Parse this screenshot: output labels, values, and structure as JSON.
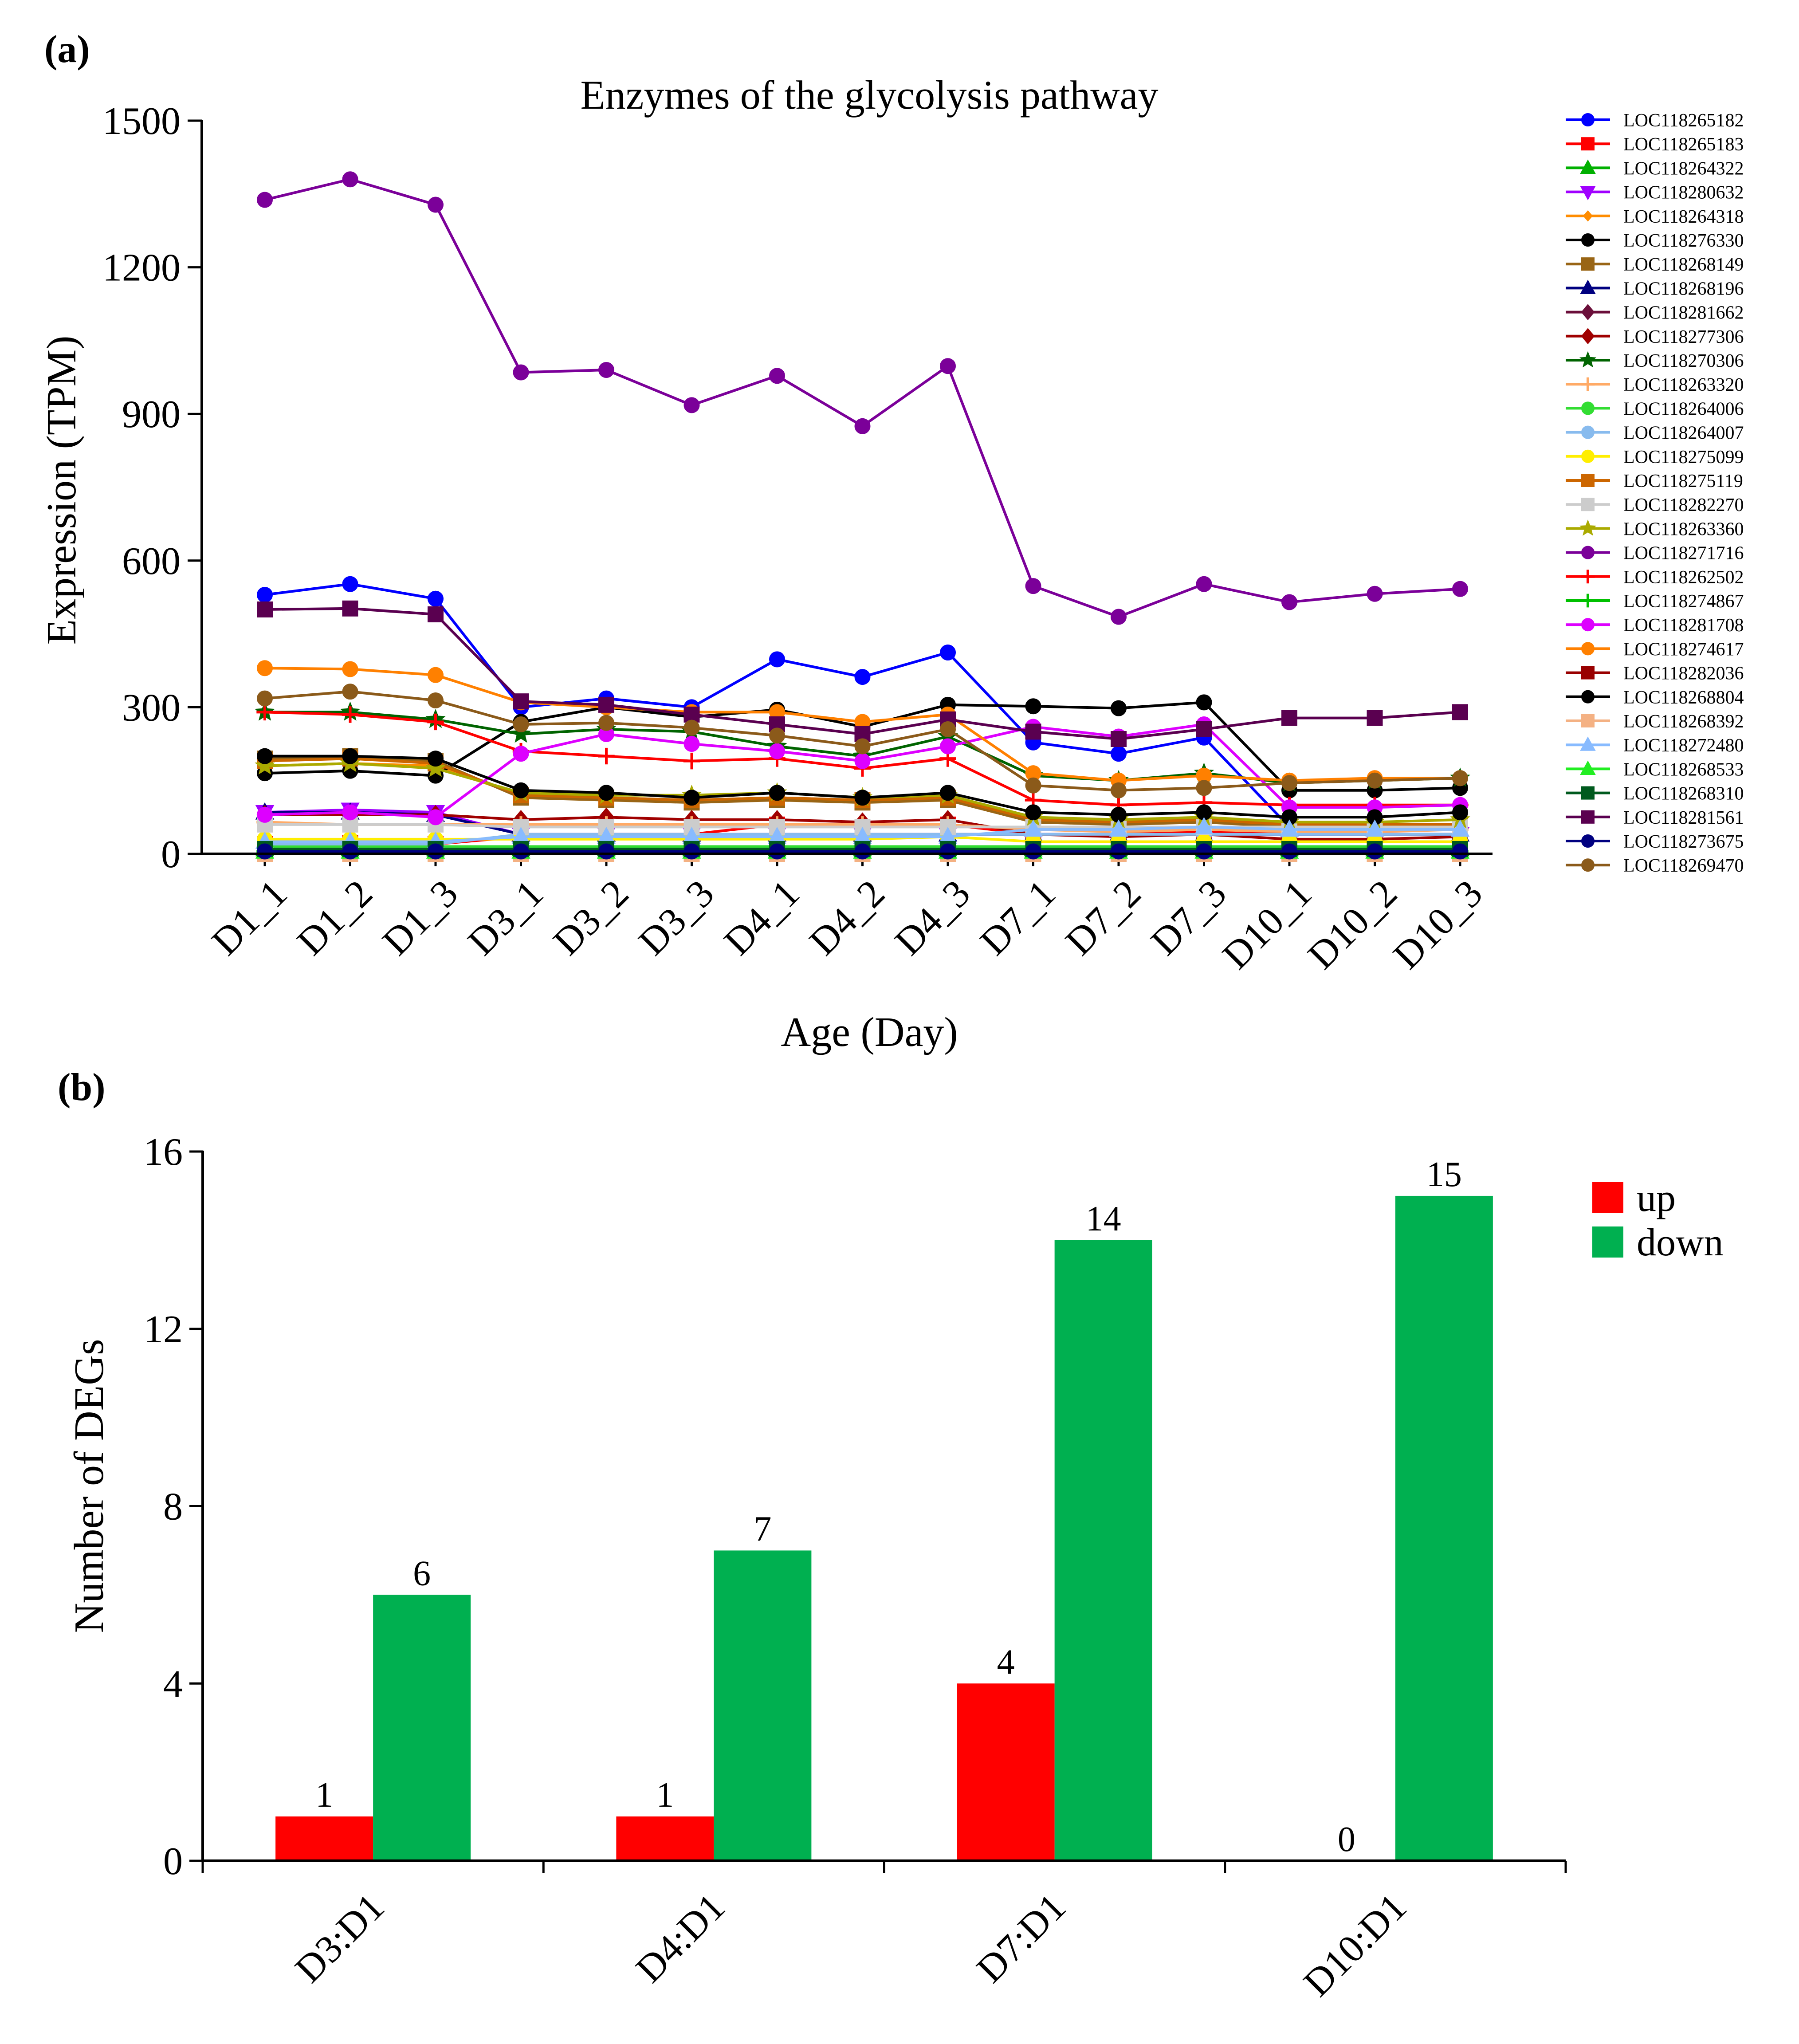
{
  "figure": {
    "panel_a_label": "(a)",
    "panel_b_label": "(b)"
  },
  "chart_data": [
    {
      "type": "line",
      "title": "Enzymes of the glycolysis pathway",
      "xlabel": "Age (Day)",
      "ylabel": "Expression (TPM)",
      "ylim": [
        0,
        1500
      ],
      "yticks": [
        "0",
        "300",
        "600",
        "900",
        "1200",
        "1500"
      ],
      "categories": [
        "D1_1",
        "D1_2",
        "D1_3",
        "D3_1",
        "D3_2",
        "D3_3",
        "D4_1",
        "D4_2",
        "D4_3",
        "D7_1",
        "D7_2",
        "D7_3",
        "D10_1",
        "D10_2",
        "D10_3"
      ],
      "legend_position": "right",
      "series": [
        {
          "name": "LOC118265182",
          "color": "#0000FF",
          "marker": "circle",
          "values": [
            530,
            552,
            522,
            300,
            318,
            300,
            398,
            362,
            412,
            228,
            205,
            238,
            55,
            55,
            55
          ]
        },
        {
          "name": "LOC118265183",
          "color": "#FF0000",
          "marker": "square",
          "values": [
            20,
            22,
            20,
            35,
            40,
            40,
            60,
            55,
            60,
            40,
            40,
            45,
            40,
            40,
            40
          ]
        },
        {
          "name": "LOC118264322",
          "color": "#00B000",
          "marker": "triangle",
          "values": [
            10,
            10,
            10,
            10,
            10,
            10,
            10,
            10,
            10,
            10,
            10,
            10,
            10,
            10,
            10
          ]
        },
        {
          "name": "LOC118280632",
          "color": "#A000FF",
          "marker": "triangle-down",
          "values": [
            85,
            90,
            85,
            40,
            40,
            40,
            40,
            40,
            40,
            40,
            40,
            40,
            40,
            40,
            40
          ]
        },
        {
          "name": "LOC118264318",
          "color": "#FF8C00",
          "marker": "diamond-small",
          "values": [
            180,
            185,
            180,
            120,
            115,
            110,
            115,
            110,
            115,
            70,
            65,
            70,
            60,
            60,
            60
          ]
        },
        {
          "name": "LOC118276330",
          "color": "#000000",
          "marker": "circle",
          "values": [
            165,
            170,
            160,
            270,
            300,
            280,
            295,
            260,
            305,
            302,
            298,
            310,
            130,
            130,
            135
          ]
        },
        {
          "name": "LOC118268149",
          "color": "#996515",
          "marker": "square",
          "values": [
            195,
            200,
            190,
            115,
            110,
            105,
            110,
            105,
            110,
            65,
            60,
            65,
            55,
            55,
            55
          ]
        },
        {
          "name": "LOC118268196",
          "color": "#000080",
          "marker": "triangle",
          "values": [
            85,
            85,
            80,
            40,
            40,
            40,
            40,
            40,
            40,
            40,
            40,
            40,
            40,
            40,
            40
          ]
        },
        {
          "name": "LOC118281662",
          "color": "#6B0F3A",
          "marker": "diamond",
          "values": [
            5,
            5,
            5,
            5,
            5,
            5,
            5,
            5,
            5,
            5,
            5,
            5,
            5,
            5,
            5
          ]
        },
        {
          "name": "LOC118277306",
          "color": "#A00000",
          "marker": "diamond",
          "values": [
            80,
            80,
            80,
            70,
            75,
            70,
            70,
            65,
            70,
            40,
            35,
            40,
            30,
            30,
            35
          ]
        },
        {
          "name": "LOC118270306",
          "color": "#006400",
          "marker": "star",
          "values": [
            290,
            290,
            275,
            245,
            255,
            250,
            220,
            200,
            240,
            160,
            150,
            165,
            145,
            150,
            155
          ]
        },
        {
          "name": "LOC118263320",
          "color": "#FFAA66",
          "marker": "plus",
          "values": [
            65,
            60,
            60,
            60,
            60,
            60,
            60,
            60,
            60,
            50,
            45,
            50,
            45,
            45,
            50
          ]
        },
        {
          "name": "LOC118264006",
          "color": "#33DD33",
          "marker": "circle",
          "values": [
            15,
            15,
            15,
            15,
            15,
            15,
            15,
            15,
            15,
            15,
            15,
            15,
            15,
            15,
            15
          ]
        },
        {
          "name": "LOC118264007",
          "color": "#88BBEE",
          "marker": "circle",
          "values": [
            20,
            20,
            20,
            40,
            40,
            40,
            40,
            40,
            40,
            40,
            40,
            40,
            40,
            40,
            40
          ]
        },
        {
          "name": "LOC118275099",
          "color": "#FFEE00",
          "marker": "circle",
          "values": [
            30,
            30,
            30,
            30,
            30,
            30,
            30,
            30,
            35,
            25,
            25,
            25,
            25,
            25,
            25
          ]
        },
        {
          "name": "LOC118275119",
          "color": "#CC6600",
          "marker": "square",
          "values": [
            190,
            195,
            185,
            120,
            115,
            110,
            115,
            110,
            115,
            70,
            65,
            70,
            60,
            60,
            60
          ]
        },
        {
          "name": "LOC118282270",
          "color": "#CCCCCC",
          "marker": "square",
          "values": [
            60,
            60,
            60,
            55,
            55,
            55,
            55,
            55,
            55,
            55,
            55,
            55,
            55,
            55,
            55
          ]
        },
        {
          "name": "LOC118263360",
          "color": "#AAAA00",
          "marker": "star",
          "values": [
            180,
            185,
            175,
            125,
            120,
            120,
            125,
            115,
            120,
            75,
            70,
            75,
            65,
            65,
            70
          ]
        },
        {
          "name": "LOC118271716",
          "color": "#7B0099",
          "marker": "circle",
          "values": [
            1338,
            1380,
            1328,
            985,
            990,
            918,
            978,
            875,
            998,
            548,
            485,
            552,
            515,
            532,
            542
          ]
        },
        {
          "name": "LOC118262502",
          "color": "#FF0000",
          "marker": "plus",
          "values": [
            290,
            285,
            270,
            210,
            200,
            190,
            195,
            175,
            195,
            110,
            100,
            105,
            100,
            100,
            100
          ]
        },
        {
          "name": "LOC118274867",
          "color": "#00C000",
          "marker": "plus",
          "values": [
            5,
            5,
            5,
            5,
            5,
            5,
            5,
            5,
            5,
            5,
            5,
            5,
            5,
            5,
            5
          ]
        },
        {
          "name": "LOC118281708",
          "color": "#DD00FF",
          "marker": "circle",
          "values": [
            80,
            85,
            75,
            205,
            245,
            225,
            210,
            190,
            220,
            260,
            240,
            265,
            95,
            95,
            100
          ]
        },
        {
          "name": "LOC118274617",
          "color": "#FF8000",
          "marker": "circle",
          "values": [
            380,
            378,
            366,
            310,
            300,
            290,
            290,
            270,
            285,
            165,
            150,
            160,
            150,
            155,
            155
          ]
        },
        {
          "name": "LOC118282036",
          "color": "#990000",
          "marker": "square",
          "values": [
            10,
            10,
            10,
            10,
            10,
            10,
            10,
            10,
            10,
            10,
            10,
            10,
            10,
            10,
            10
          ]
        },
        {
          "name": "LOC118268804",
          "color": "#000000",
          "marker": "circle",
          "values": [
            200,
            200,
            195,
            130,
            125,
            115,
            125,
            115,
            125,
            85,
            80,
            85,
            75,
            75,
            85
          ]
        },
        {
          "name": "LOC118268392",
          "color": "#F4B183",
          "marker": "square",
          "values": [
            0,
            0,
            0,
            0,
            0,
            0,
            0,
            0,
            0,
            0,
            0,
            0,
            0,
            0,
            0
          ]
        },
        {
          "name": "LOC118272480",
          "color": "#88BBFF",
          "marker": "triangle",
          "values": [
            25,
            25,
            25,
            35,
            35,
            35,
            35,
            35,
            35,
            50,
            50,
            55,
            50,
            50,
            50
          ]
        },
        {
          "name": "LOC118268533",
          "color": "#22EE22",
          "marker": "triangle",
          "values": [
            5,
            5,
            5,
            5,
            5,
            5,
            5,
            5,
            5,
            5,
            5,
            5,
            5,
            5,
            5
          ]
        },
        {
          "name": "LOC118268310",
          "color": "#005A1E",
          "marker": "square",
          "values": [
            10,
            10,
            10,
            10,
            10,
            10,
            10,
            10,
            10,
            10,
            10,
            10,
            10,
            10,
            10
          ]
        },
        {
          "name": "LOC118281561",
          "color": "#5A0050",
          "marker": "square",
          "values": [
            500,
            502,
            490,
            312,
            305,
            285,
            265,
            245,
            275,
            250,
            235,
            255,
            278,
            278,
            290
          ]
        },
        {
          "name": "LOC118273675",
          "color": "#000080",
          "marker": "circle",
          "values": [
            5,
            5,
            5,
            5,
            5,
            5,
            5,
            5,
            5,
            5,
            5,
            5,
            5,
            5,
            5
          ]
        },
        {
          "name": "LOC118269470",
          "color": "#8B5A1A",
          "marker": "circle",
          "values": [
            318,
            332,
            314,
            265,
            268,
            258,
            242,
            220,
            255,
            140,
            130,
            135,
            145,
            150,
            155
          ]
        }
      ]
    },
    {
      "type": "bar",
      "xlabel": "",
      "ylabel": "Number of DEGs",
      "ylim": [
        0,
        16
      ],
      "yticks": [
        "0",
        "4",
        "8",
        "12",
        "16"
      ],
      "categories": [
        "D3:D1",
        "D4:D1",
        "D7:D1",
        "D10:D1"
      ],
      "legend_position": "top-right",
      "series": [
        {
          "name": "up",
          "color": "#FF0000",
          "values": [
            1,
            1,
            4,
            0
          ],
          "labels": [
            "1",
            "1",
            "4",
            "0"
          ]
        },
        {
          "name": "down",
          "color": "#00B050",
          "values": [
            6,
            7,
            14,
            15
          ],
          "labels": [
            "6",
            "7",
            "14",
            "15"
          ]
        }
      ]
    }
  ]
}
